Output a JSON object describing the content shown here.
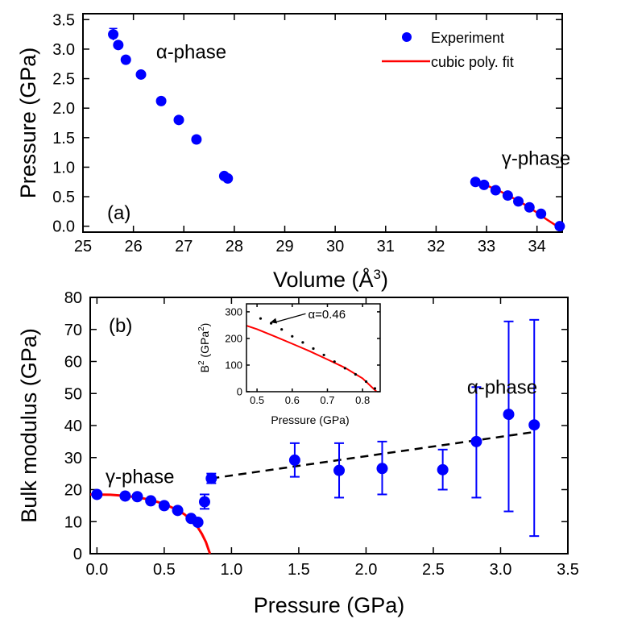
{
  "chart_data": [
    {
      "panel_label": "(a)",
      "type": "scatter",
      "xlabel": "Volume (Å",
      "xlabel_sup": "3",
      "xlabel_end": ")",
      "ylabel": "Pressure (GPa)",
      "xlim": [
        25,
        34.5
      ],
      "ylim": [
        -0.1,
        3.6
      ],
      "xticks": [
        "25",
        "26",
        "27",
        "28",
        "29",
        "30",
        "31",
        "32",
        "33",
        "34"
      ],
      "yticks": [
        "0.0",
        "0.5",
        "1.0",
        "1.5",
        "2.0",
        "2.5",
        "3.0",
        "3.5"
      ],
      "grid": false,
      "legend_position": "top-right",
      "legend": [
        {
          "label": "Experiment",
          "marker": "circle",
          "color": "#0000ff"
        },
        {
          "label": "cubic poly. fit",
          "marker": "line",
          "color": "#ff0000"
        }
      ],
      "annotations": [
        {
          "text": "α-phase",
          "x": 26.45,
          "y": 2.95
        },
        {
          "text": "γ-phase",
          "x": 33.3,
          "y": 1.15
        }
      ],
      "series": [
        {
          "name": "Experiment",
          "color": "#0000ff",
          "x": [
            25.6,
            25.7,
            25.85,
            26.15,
            26.55,
            26.9,
            27.25,
            27.8,
            27.87,
            32.78,
            32.95,
            33.18,
            33.42,
            33.63,
            33.85,
            34.08,
            34.45
          ],
          "y": [
            3.25,
            3.07,
            2.82,
            2.57,
            2.12,
            1.8,
            1.47,
            0.85,
            0.81,
            0.75,
            0.7,
            0.61,
            0.52,
            0.42,
            0.32,
            0.21,
            0.0
          ],
          "yerr": [
            0.1,
            0.05,
            0.05,
            0.03,
            0.03,
            0.03,
            0.03,
            0.03,
            0.03,
            0.03,
            0.03,
            0.03,
            0.03,
            0.03,
            0.03,
            0.03,
            0.03
          ]
        },
        {
          "name": "cubic poly. fit",
          "type": "line",
          "color": "#ff0000",
          "x": [
            32.78,
            33.0,
            33.25,
            33.5,
            33.75,
            34.0,
            34.2,
            34.4
          ],
          "y": [
            0.75,
            0.69,
            0.6,
            0.49,
            0.37,
            0.23,
            0.11,
            0.0
          ]
        }
      ]
    },
    {
      "panel_label": "(b)",
      "type": "scatter",
      "xlabel": "Pressure (GPa)",
      "ylabel": "Bulk modulus (GPa)",
      "xlim": [
        -0.05,
        3.5
      ],
      "ylim": [
        0,
        80
      ],
      "xticks": [
        "0.0",
        "0.5",
        "1.0",
        "1.5",
        "2.0",
        "2.5",
        "3.0",
        "3.5"
      ],
      "yticks": [
        "0",
        "10",
        "20",
        "30",
        "40",
        "50",
        "60",
        "70",
        "80"
      ],
      "grid": false,
      "annotations": [
        {
          "text": "γ-phase",
          "x": 0.1,
          "y": 24
        },
        {
          "text": "α-phase",
          "x": 3.05,
          "y": 52
        }
      ],
      "series": [
        {
          "color": "#0000ff",
          "x": [
            0.0,
            0.21,
            0.3,
            0.4,
            0.5,
            0.6,
            0.7,
            0.75,
            0.8,
            0.85,
            1.47,
            1.8,
            2.12,
            2.57,
            2.82,
            3.06,
            3.25
          ],
          "y": [
            18.5,
            18.0,
            17.8,
            16.5,
            15.0,
            13.5,
            11.0,
            9.8,
            16.2,
            23.5,
            29.2,
            26.0,
            26.6,
            26.2,
            35.0,
            43.5,
            40.2
          ],
          "ylow": [
            null,
            null,
            null,
            null,
            null,
            null,
            null,
            null,
            14.0,
            22.0,
            24.0,
            17.5,
            18.5,
            20.0,
            17.5,
            13.2,
            5.5
          ],
          "yhigh": [
            null,
            null,
            null,
            null,
            null,
            null,
            null,
            null,
            18.5,
            25.0,
            34.5,
            34.5,
            35.0,
            32.5,
            52.0,
            72.5,
            73.0
          ]
        },
        {
          "type": "line",
          "style": "solid",
          "color": "#ff0000",
          "x": [
            -0.05,
            0.1,
            0.2,
            0.3,
            0.4,
            0.5,
            0.6,
            0.65,
            0.7,
            0.75,
            0.78,
            0.81,
            0.83,
            0.84
          ],
          "y": [
            18.5,
            18.4,
            18.1,
            17.6,
            16.8,
            15.5,
            13.6,
            12.3,
            10.6,
            8.2,
            6.2,
            3.6,
            1.2,
            0.0
          ]
        },
        {
          "type": "line",
          "style": "dashed",
          "color": "#000000",
          "x": [
            0.85,
            3.25
          ],
          "y": [
            23.5,
            38.0
          ]
        }
      ]
    },
    {
      "panel_label": "",
      "type": "scatter",
      "xlabel": "Pressure (GPa)",
      "ylabel": "B",
      "ylabel_sup1": "2",
      "ylabel_mid": " (GPa",
      "ylabel_sup2": "2",
      "ylabel_end": ")",
      "xlim": [
        0.47,
        0.85
      ],
      "ylim": [
        0,
        330
      ],
      "xticks": [
        "0.5",
        "0.6",
        "0.7",
        "0.8"
      ],
      "yticks": [
        "0",
        "100",
        "200",
        "300"
      ],
      "grid": false,
      "annotations": [
        {
          "text": "α=0.46",
          "x": 0.645,
          "y": 290
        }
      ],
      "series": [
        {
          "color": "#000000",
          "x": [
            0.51,
            0.54,
            0.57,
            0.6,
            0.63,
            0.66,
            0.69,
            0.72,
            0.75,
            0.78,
            0.81,
            0.835
          ],
          "y": [
            275,
            257,
            234,
            208,
            185,
            162,
            138,
            113,
            88,
            65,
            38,
            12
          ]
        },
        {
          "type": "line",
          "color": "#ff0000",
          "x": [
            0.47,
            0.5,
            0.55,
            0.6,
            0.65,
            0.7,
            0.75,
            0.8,
            0.84
          ],
          "y": [
            248,
            235,
            208,
            180,
            152,
            121,
            90,
            50,
            0
          ]
        }
      ]
    }
  ]
}
